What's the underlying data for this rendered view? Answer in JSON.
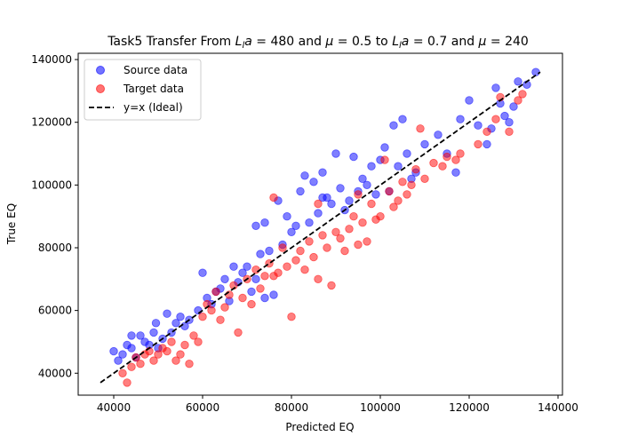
{
  "chart_data": {
    "type": "scatter",
    "title_parts": {
      "prefix": "Task5 Transfer From ",
      "var1": "L",
      "var1_sub": "l",
      "var1_rest": "a",
      "eq1": " = 480 and ",
      "mu": "μ",
      "eq2": " = 0.5 to ",
      "var2": "L",
      "var2_sub": "l",
      "var2_rest": "a",
      "eq3": " = 0.7 and ",
      "mu2": "μ",
      "eq4": " = 240"
    },
    "xlabel": "Predicted EQ",
    "ylabel": "True EQ",
    "xlim": [
      32000,
      141000
    ],
    "ylim": [
      33000,
      142000
    ],
    "xticks": [
      40000,
      60000,
      80000,
      100000,
      120000,
      140000
    ],
    "yticks": [
      40000,
      60000,
      80000,
      100000,
      120000,
      140000
    ],
    "xtick_labels": [
      "40000",
      "60000",
      "80000",
      "100000",
      "120000",
      "140000"
    ],
    "ytick_labels": [
      "40000",
      "60000",
      "80000",
      "100000",
      "120000",
      "140000"
    ],
    "legend_position": "upper-left",
    "ideal_line": {
      "name": "y=x (Ideal)",
      "from": 37000,
      "to": 136000,
      "color": "#000000"
    },
    "series": [
      {
        "name": "Source data",
        "color": "#0000ff",
        "points": [
          [
            40000,
            47000
          ],
          [
            41000,
            44000
          ],
          [
            42000,
            46000
          ],
          [
            43000,
            49000
          ],
          [
            44000,
            52000
          ],
          [
            44000,
            48000
          ],
          [
            45000,
            45000
          ],
          [
            46000,
            52000
          ],
          [
            47000,
            50000
          ],
          [
            48000,
            49000
          ],
          [
            49000,
            53000
          ],
          [
            49500,
            56000
          ],
          [
            50000,
            48000
          ],
          [
            51000,
            51000
          ],
          [
            52000,
            59000
          ],
          [
            53000,
            53000
          ],
          [
            54000,
            56000
          ],
          [
            55000,
            58000
          ],
          [
            56000,
            55000
          ],
          [
            57000,
            57000
          ],
          [
            59000,
            60000
          ],
          [
            60000,
            72000
          ],
          [
            61000,
            64000
          ],
          [
            62000,
            62000
          ],
          [
            63000,
            66000
          ],
          [
            64000,
            67000
          ],
          [
            65000,
            70000
          ],
          [
            66000,
            63000
          ],
          [
            67000,
            74000
          ],
          [
            68000,
            69000
          ],
          [
            69000,
            72000
          ],
          [
            70000,
            74000
          ],
          [
            71000,
            66000
          ],
          [
            72000,
            70000
          ],
          [
            73000,
            78000
          ],
          [
            74000,
            64000
          ],
          [
            75000,
            79000
          ],
          [
            76000,
            65000
          ],
          [
            77000,
            95000
          ],
          [
            78000,
            81000
          ],
          [
            79000,
            90000
          ],
          [
            80000,
            85000
          ],
          [
            81000,
            87000
          ],
          [
            82000,
            98000
          ],
          [
            83000,
            103000
          ],
          [
            84000,
            88000
          ],
          [
            85000,
            101000
          ],
          [
            86000,
            91000
          ],
          [
            87000,
            104000
          ],
          [
            88000,
            96000
          ],
          [
            89000,
            94000
          ],
          [
            90000,
            110000
          ],
          [
            91000,
            99000
          ],
          [
            92000,
            92000
          ],
          [
            93000,
            95000
          ],
          [
            94000,
            109000
          ],
          [
            95000,
            98000
          ],
          [
            96000,
            102000
          ],
          [
            97000,
            100000
          ],
          [
            98000,
            106000
          ],
          [
            99000,
            97000
          ],
          [
            100000,
            108000
          ],
          [
            101000,
            112000
          ],
          [
            102000,
            98000
          ],
          [
            103000,
            119000
          ],
          [
            104000,
            106000
          ],
          [
            105000,
            121000
          ],
          [
            106000,
            110000
          ],
          [
            107000,
            102000
          ],
          [
            108000,
            104000
          ],
          [
            110000,
            113000
          ],
          [
            113000,
            116000
          ],
          [
            115000,
            110000
          ],
          [
            117000,
            104000
          ],
          [
            118000,
            121000
          ],
          [
            120000,
            127000
          ],
          [
            122000,
            119000
          ],
          [
            124000,
            113000
          ],
          [
            125000,
            118000
          ],
          [
            126000,
            131000
          ],
          [
            127000,
            126000
          ],
          [
            128000,
            122000
          ],
          [
            129000,
            120000
          ],
          [
            130000,
            125000
          ],
          [
            131000,
            133000
          ],
          [
            133000,
            132000
          ],
          [
            135000,
            136000
          ],
          [
            72000,
            87000
          ],
          [
            74000,
            88000
          ],
          [
            87000,
            96000
          ]
        ]
      },
      {
        "name": "Target data",
        "color": "#ff0000",
        "points": [
          [
            42000,
            40000
          ],
          [
            43000,
            37000
          ],
          [
            44000,
            42000
          ],
          [
            45000,
            45000
          ],
          [
            46000,
            43000
          ],
          [
            47000,
            46000
          ],
          [
            48000,
            47000
          ],
          [
            49000,
            44000
          ],
          [
            50000,
            46000
          ],
          [
            51000,
            48000
          ],
          [
            52000,
            47000
          ],
          [
            53000,
            50000
          ],
          [
            54000,
            44000
          ],
          [
            55000,
            46000
          ],
          [
            56000,
            49000
          ],
          [
            57000,
            43000
          ],
          [
            58000,
            52000
          ],
          [
            59000,
            50000
          ],
          [
            60000,
            58000
          ],
          [
            61000,
            62000
          ],
          [
            62000,
            60000
          ],
          [
            63000,
            66000
          ],
          [
            64000,
            57000
          ],
          [
            65000,
            61000
          ],
          [
            66000,
            65000
          ],
          [
            67000,
            68000
          ],
          [
            68000,
            53000
          ],
          [
            69000,
            64000
          ],
          [
            70000,
            70000
          ],
          [
            71000,
            62000
          ],
          [
            72000,
            73000
          ],
          [
            73000,
            67000
          ],
          [
            74000,
            71000
          ],
          [
            75000,
            75000
          ],
          [
            76000,
            96000
          ],
          [
            77000,
            72000
          ],
          [
            78000,
            80000
          ],
          [
            79000,
            74000
          ],
          [
            80000,
            58000
          ],
          [
            81000,
            76000
          ],
          [
            82000,
            79000
          ],
          [
            83000,
            73000
          ],
          [
            84000,
            82000
          ],
          [
            85000,
            77000
          ],
          [
            86000,
            70000
          ],
          [
            87000,
            84000
          ],
          [
            88000,
            80000
          ],
          [
            89000,
            68000
          ],
          [
            90000,
            85000
          ],
          [
            91000,
            83000
          ],
          [
            92000,
            79000
          ],
          [
            93000,
            86000
          ],
          [
            94000,
            90000
          ],
          [
            95000,
            81000
          ],
          [
            96000,
            88000
          ],
          [
            97000,
            82000
          ],
          [
            98000,
            94000
          ],
          [
            99000,
            89000
          ],
          [
            100000,
            90000
          ],
          [
            101000,
            108000
          ],
          [
            102000,
            98000
          ],
          [
            103000,
            93000
          ],
          [
            104000,
            95000
          ],
          [
            105000,
            101000
          ],
          [
            106000,
            97000
          ],
          [
            107000,
            100000
          ],
          [
            108000,
            105000
          ],
          [
            109000,
            118000
          ],
          [
            110000,
            102000
          ],
          [
            112000,
            107000
          ],
          [
            114000,
            106000
          ],
          [
            115000,
            109000
          ],
          [
            117000,
            108000
          ],
          [
            118000,
            110000
          ],
          [
            122000,
            113000
          ],
          [
            124000,
            117000
          ],
          [
            126000,
            121000
          ],
          [
            127000,
            128000
          ],
          [
            129000,
            117000
          ],
          [
            131000,
            127000
          ],
          [
            132000,
            129000
          ],
          [
            76000,
            71000
          ],
          [
            86000,
            94000
          ],
          [
            95000,
            97000
          ]
        ]
      }
    ]
  }
}
